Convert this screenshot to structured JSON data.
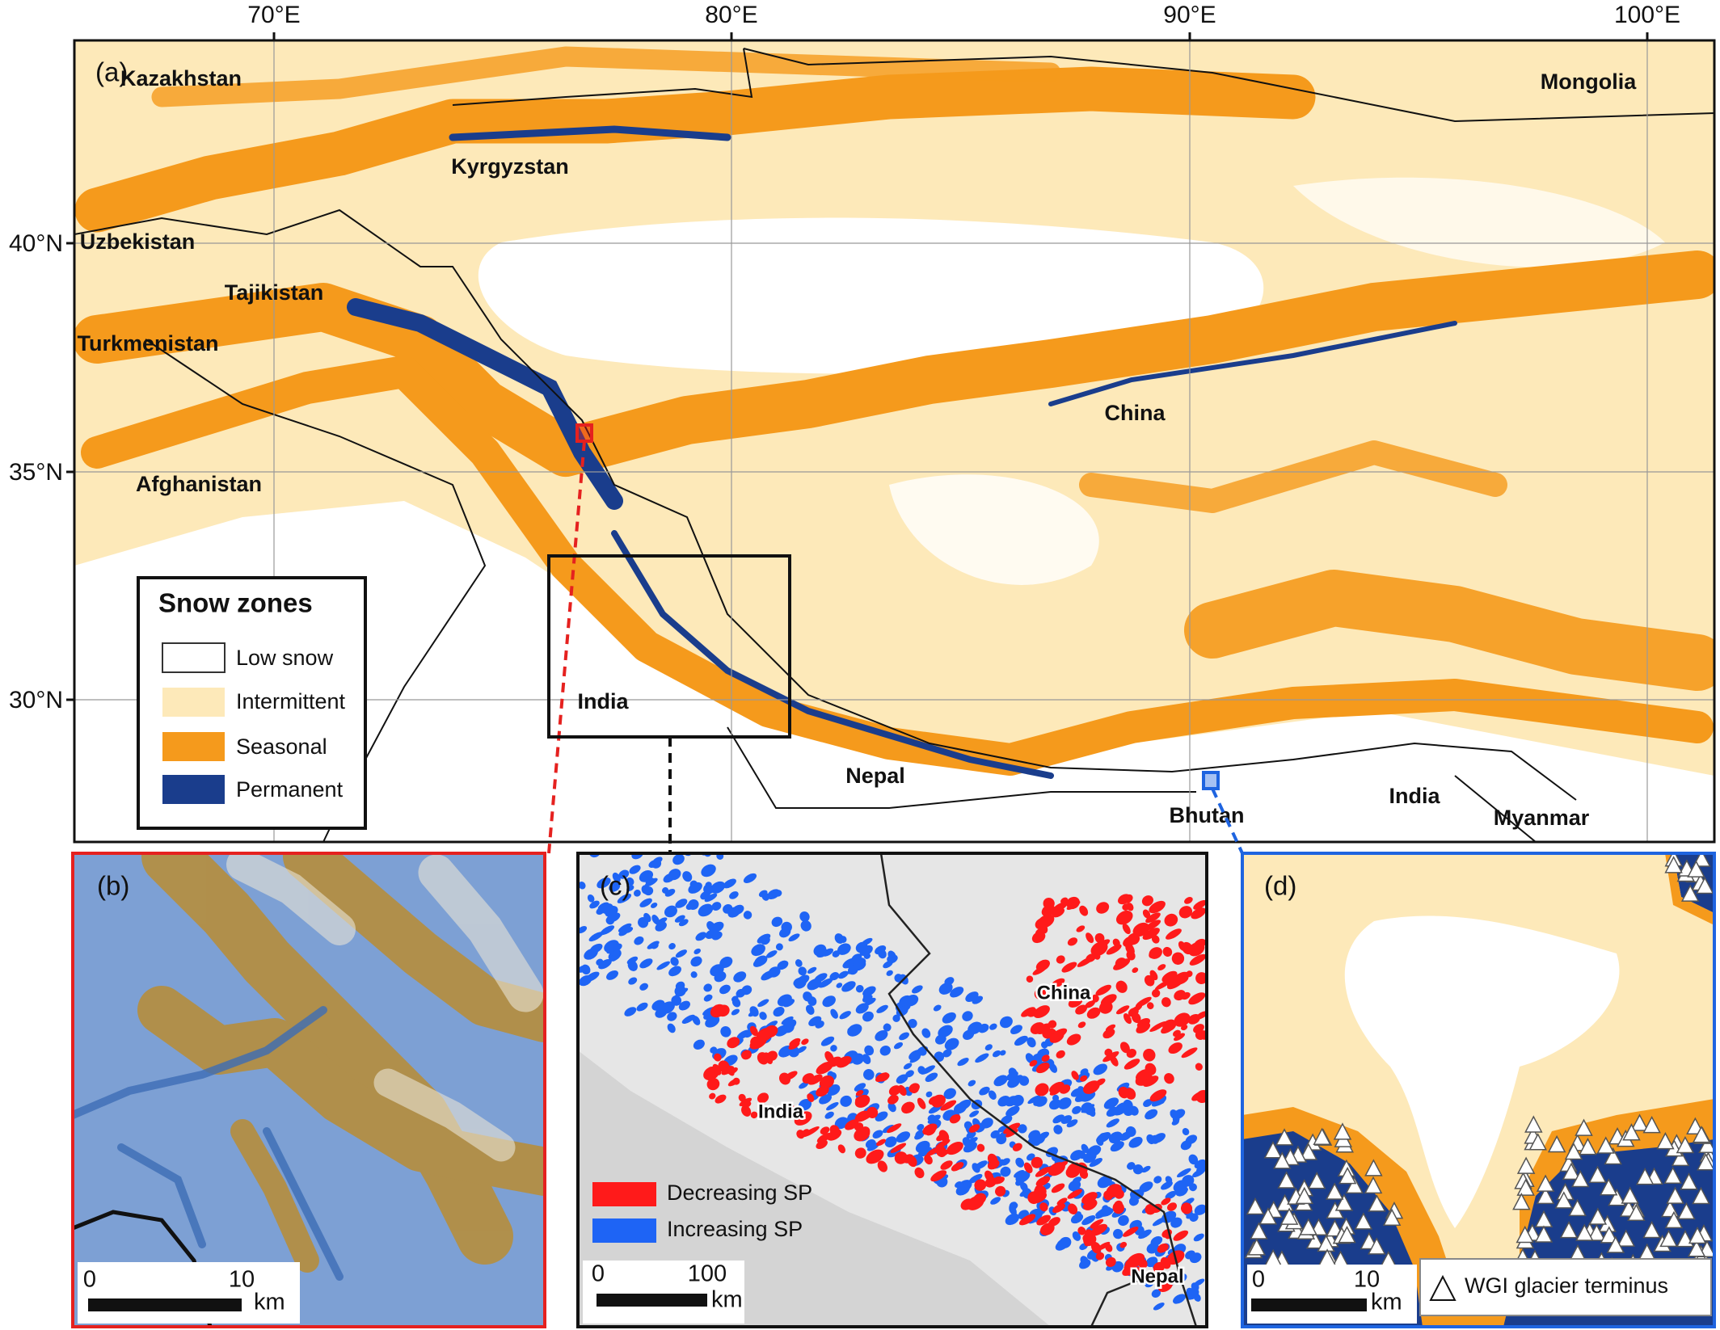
{
  "panel_a": {
    "label": "(a)",
    "longitude_ticks": [
      "70°E",
      "80°E",
      "90°E",
      "100°E"
    ],
    "latitude_ticks": [
      "40°N",
      "35°N",
      "30°N"
    ],
    "places": [
      "Kazakhstan",
      "Kyrgyzstan",
      "Uzbekistan",
      "Tajikistan",
      "Turkmenistan",
      "Afghanistan",
      "Mongolia",
      "China",
      "India",
      "Nepal",
      "Bhutan",
      "India",
      "Myanmar"
    ],
    "legend": {
      "title": "Snow zones",
      "items": [
        "Low snow",
        "Intermittent",
        "Seasonal",
        "Permanent"
      ]
    }
  },
  "panel_b": {
    "label": "(b)",
    "scale_bar": {
      "ticks": [
        "0",
        "10"
      ],
      "unit": "km"
    }
  },
  "panel_c": {
    "label": "(c)",
    "places": [
      "China",
      "India",
      "Nepal"
    ],
    "legend": [
      "Decreasing SP",
      "Increasing SP"
    ],
    "scale_bar": {
      "ticks": [
        "0",
        "100"
      ],
      "unit": "km"
    }
  },
  "panel_d": {
    "label": "(d)",
    "legend": "WGI glacier terminus",
    "scale_bar": {
      "ticks": [
        "0",
        "10"
      ],
      "unit": "km"
    }
  }
}
